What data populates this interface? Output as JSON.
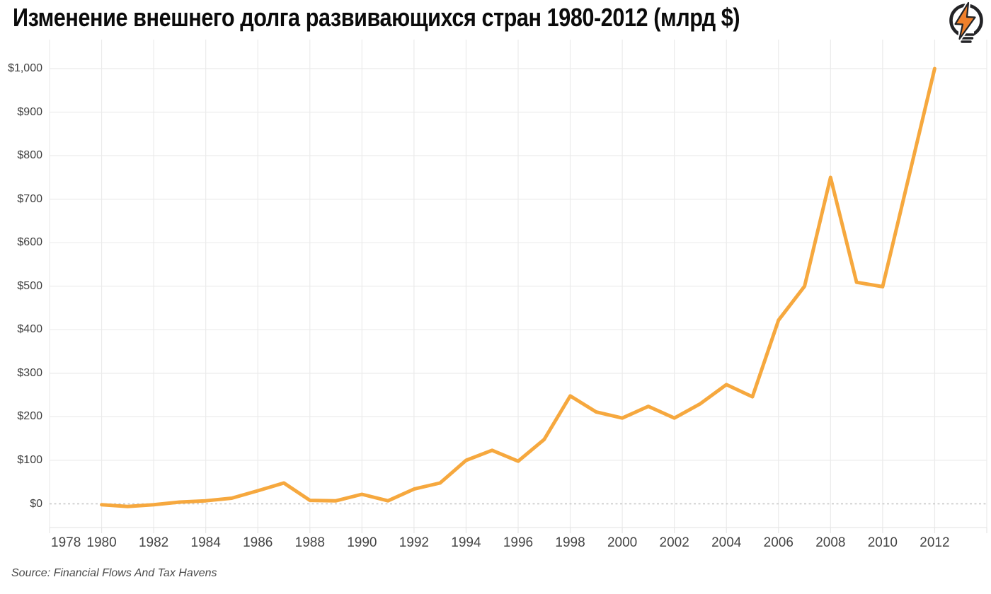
{
  "title": "Изменение внешнего долга развивающихся стран 1980-2012 (млрд $)",
  "source": "Source: Financial Flows And Tax Havens",
  "logo": {
    "icon": "lightbulb-with-lightning-bolt",
    "bulb_color": "#232326",
    "bolt_color": "#F0802B"
  },
  "colors": {
    "background": "#FFFFFF",
    "line": "#F6A83E",
    "grid": "#EBEBEB",
    "plot_border": "#E6E6E6",
    "zero_line": "#C4C4C4",
    "tick_text": "#454545",
    "title_text": "#0B0B0B",
    "source_text": "#4A4A4A"
  },
  "chart_data": {
    "type": "line",
    "title": "Изменение внешнего долга развивающихся стран 1980-2012 (млрд $)",
    "xlabel": "",
    "ylabel": "",
    "x": [
      1980,
      1981,
      1982,
      1983,
      1984,
      1985,
      1986,
      1987,
      1988,
      1989,
      1990,
      1991,
      1992,
      1993,
      1994,
      1995,
      1996,
      1997,
      1998,
      1999,
      2000,
      2001,
      2002,
      2003,
      2004,
      2005,
      2006,
      2007,
      2008,
      2009,
      2010,
      2011,
      2012
    ],
    "values": [
      -2,
      -6,
      -2,
      4,
      7,
      13,
      30,
      48,
      8,
      7,
      22,
      7,
      34,
      48,
      100,
      123,
      98,
      148,
      248,
      211,
      197,
      224,
      197,
      230,
      274,
      246,
      422,
      500,
      750,
      509,
      499,
      750,
      1000
    ],
    "x_tick_labels": [
      "1978",
      "1980",
      "1982",
      "1984",
      "1986",
      "1988",
      "1990",
      "1992",
      "1994",
      "1996",
      "1998",
      "2000",
      "2002",
      "2004",
      "2006",
      "2008",
      "2010",
      "2012"
    ],
    "x_tick_values": [
      1978,
      1980,
      1982,
      1984,
      1986,
      1988,
      1990,
      1992,
      1994,
      1996,
      1998,
      2000,
      2002,
      2004,
      2006,
      2008,
      2010,
      2012
    ],
    "y_tick_labels": [
      "$0",
      "$100",
      "$200",
      "$300",
      "$400",
      "$500",
      "$600",
      "$700",
      "$800",
      "$900",
      "$1,000"
    ],
    "y_tick_values": [
      0,
      100,
      200,
      300,
      400,
      500,
      600,
      700,
      800,
      900,
      1000
    ],
    "xlim": [
      1978,
      2014
    ],
    "ylim": [
      -55,
      1065
    ],
    "grid": true,
    "zero_line_style": "dashed",
    "legend": false
  }
}
